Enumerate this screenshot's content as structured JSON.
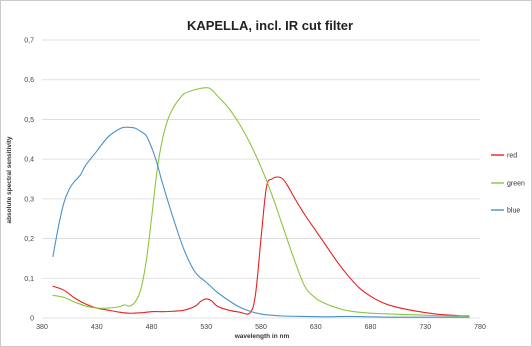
{
  "chart_data": {
    "type": "line",
    "title": "KAPELLA, incl. IR cut filter",
    "xlabel": "wavelength in nm",
    "ylabel": "absolute spectral sensitivity",
    "xlim": [
      380,
      780
    ],
    "ylim": [
      0,
      0.7
    ],
    "x_ticks": [
      "380",
      "430",
      "480",
      "530",
      "580",
      "630",
      "680",
      "730",
      "780"
    ],
    "y_ticks": [
      "0",
      "0,1",
      "0,2",
      "0,3",
      "0,4",
      "0,5",
      "0,6",
      "0,7"
    ],
    "grid": true,
    "legend_position": "right",
    "series": [
      {
        "name": "red",
        "color": "#e8211f",
        "x": [
          390,
          400,
          410,
          420,
          430,
          440,
          450,
          460,
          470,
          480,
          490,
          500,
          510,
          520,
          525,
          530,
          535,
          540,
          550,
          560,
          570,
          575,
          580,
          585,
          590,
          595,
          600,
          605,
          610,
          620,
          630,
          640,
          650,
          660,
          670,
          680,
          690,
          700,
          720,
          740,
          760,
          770
        ],
        "y": [
          0.08,
          0.07,
          0.05,
          0.035,
          0.025,
          0.02,
          0.015,
          0.012,
          0.013,
          0.016,
          0.016,
          0.017,
          0.02,
          0.03,
          0.042,
          0.048,
          0.043,
          0.03,
          0.02,
          0.015,
          0.013,
          0.06,
          0.2,
          0.33,
          0.35,
          0.355,
          0.35,
          0.33,
          0.305,
          0.26,
          0.22,
          0.18,
          0.14,
          0.105,
          0.075,
          0.055,
          0.04,
          0.03,
          0.018,
          0.01,
          0.006,
          0.005
        ]
      },
      {
        "name": "green",
        "color": "#8cc63f",
        "x": [
          390,
          400,
          410,
          420,
          430,
          440,
          450,
          455,
          460,
          465,
          470,
          475,
          480,
          485,
          490,
          495,
          500,
          505,
          510,
          520,
          530,
          535,
          540,
          550,
          560,
          570,
          580,
          590,
          600,
          610,
          620,
          630,
          640,
          650,
          660,
          680,
          700,
          720,
          740,
          760,
          770
        ],
        "y": [
          0.057,
          0.052,
          0.04,
          0.03,
          0.025,
          0.025,
          0.028,
          0.033,
          0.03,
          0.04,
          0.07,
          0.14,
          0.25,
          0.37,
          0.45,
          0.5,
          0.53,
          0.55,
          0.565,
          0.575,
          0.58,
          0.575,
          0.56,
          0.53,
          0.49,
          0.44,
          0.38,
          0.31,
          0.23,
          0.15,
          0.08,
          0.05,
          0.035,
          0.025,
          0.018,
          0.012,
          0.01,
          0.008,
          0.006,
          0.005,
          0.004
        ]
      },
      {
        "name": "blue",
        "color": "#4a90c8",
        "x": [
          390,
          395,
          400,
          405,
          410,
          415,
          420,
          430,
          440,
          450,
          455,
          460,
          465,
          470,
          475,
          480,
          485,
          490,
          500,
          510,
          520,
          530,
          540,
          550,
          560,
          570,
          580,
          590,
          600,
          620,
          640,
          660,
          680,
          700,
          720,
          740,
          760,
          770
        ],
        "y": [
          0.155,
          0.23,
          0.29,
          0.325,
          0.345,
          0.36,
          0.385,
          0.42,
          0.455,
          0.475,
          0.48,
          0.48,
          0.478,
          0.47,
          0.46,
          0.43,
          0.39,
          0.34,
          0.25,
          0.17,
          0.115,
          0.09,
          0.065,
          0.045,
          0.028,
          0.017,
          0.01,
          0.007,
          0.005,
          0.004,
          0.003,
          0.004,
          0.003,
          0.002,
          0.002,
          0.002,
          0.002,
          0.002
        ]
      }
    ]
  }
}
